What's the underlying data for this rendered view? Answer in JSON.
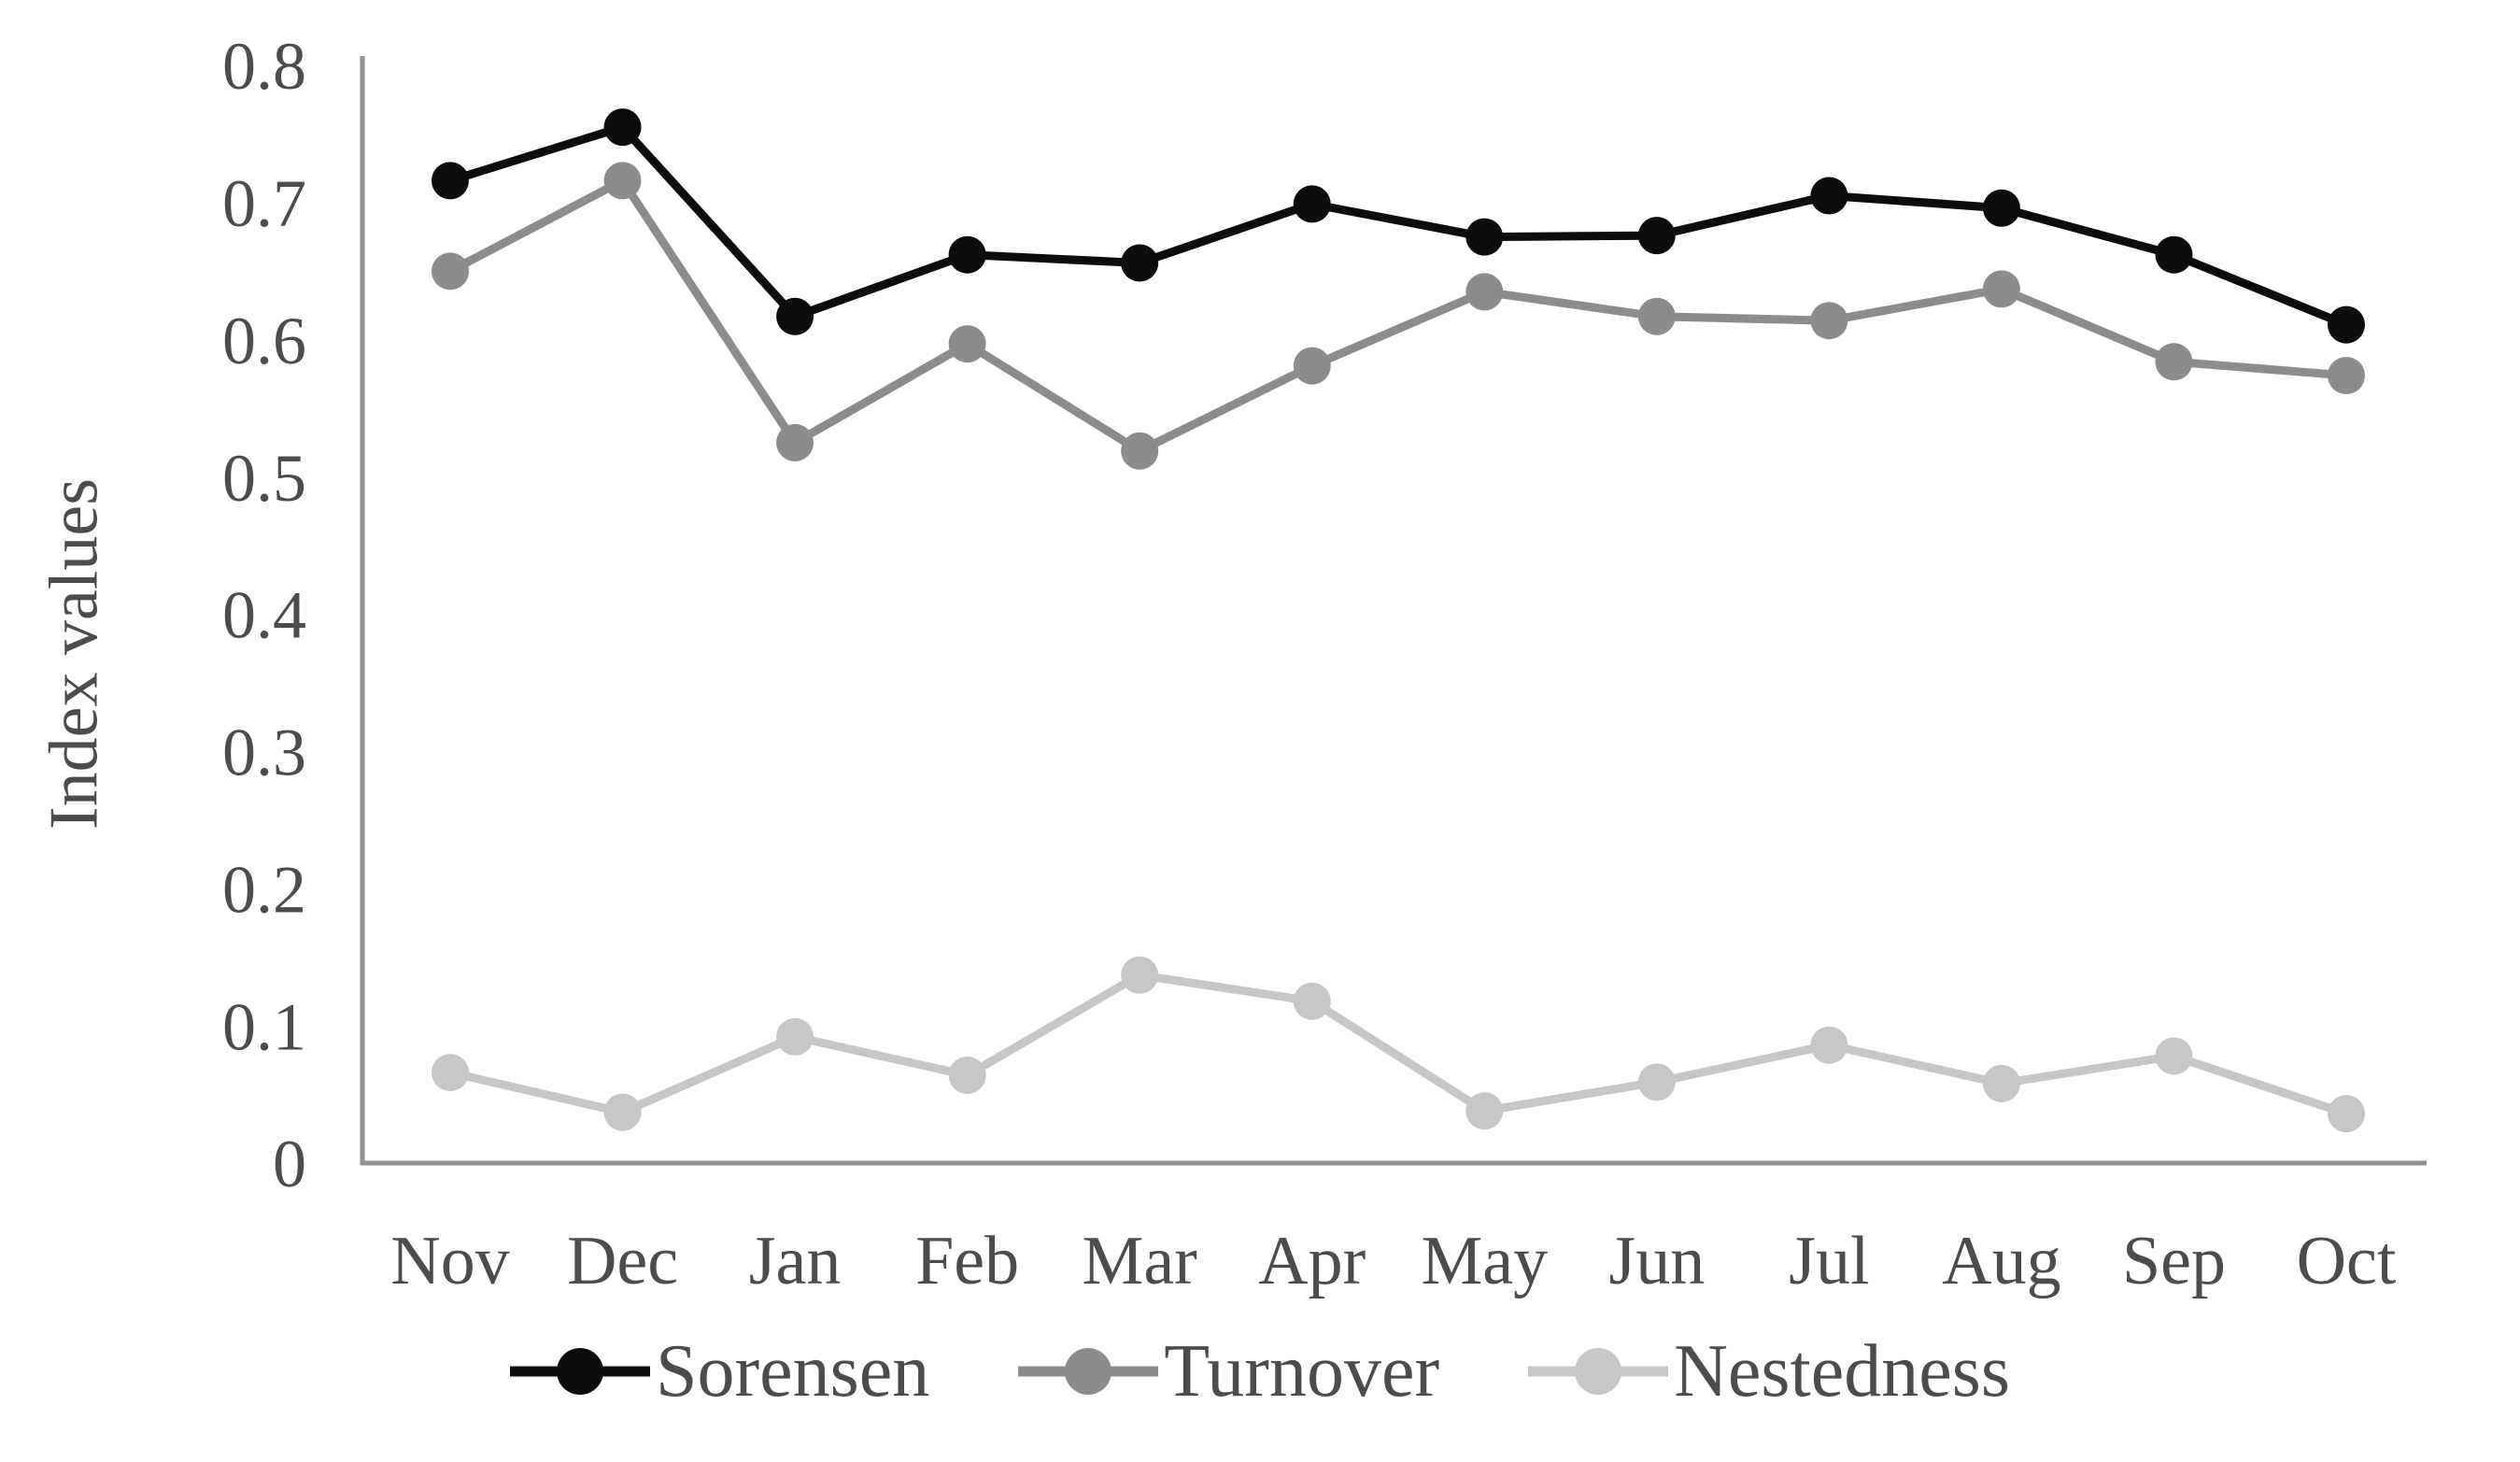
{
  "chart_data": {
    "type": "line",
    "title": "",
    "categories": [
      "Nov",
      "Dec",
      "Jan",
      "Feb",
      "Mar",
      "Apr",
      "May",
      "Jun",
      "Jul",
      "Aug",
      "Sep",
      "Oct"
    ],
    "series": [
      {
        "name": "Sorensen",
        "color": "#0d0d0d",
        "values": [
          0.716,
          0.755,
          0.617,
          0.662,
          0.656,
          0.699,
          0.675,
          0.676,
          0.705,
          0.696,
          0.662,
          0.611
        ]
      },
      {
        "name": "Turnover",
        "color": "#8c8c8c",
        "values": [
          0.65,
          0.716,
          0.525,
          0.597,
          0.519,
          0.581,
          0.635,
          0.617,
          0.614,
          0.637,
          0.584,
          0.574
        ]
      },
      {
        "name": "Nestedness",
        "color": "#c6c6c6",
        "values": [
          0.066,
          0.037,
          0.092,
          0.064,
          0.137,
          0.118,
          0.038,
          0.059,
          0.086,
          0.058,
          0.078,
          0.036
        ]
      }
    ],
    "xlabel": "",
    "ylabel": "Index values",
    "ylim": [
      0,
      0.8
    ],
    "ytick_step": 0.1,
    "ytick_labels": [
      "0",
      "0.1",
      "0.2",
      "0.3",
      "0.4",
      "0.5",
      "0.6",
      "0.7",
      "0.8"
    ],
    "grid": false,
    "legend_position": "bottom",
    "axis_color": "#919191",
    "text_color": "#4c4c4c"
  }
}
